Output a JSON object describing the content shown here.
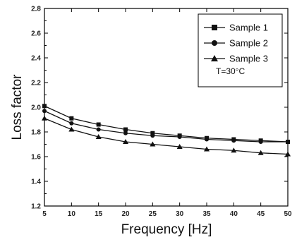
{
  "chart_data": {
    "type": "line",
    "xlabel": "Frequency [Hz]",
    "ylabel": "Loss factor",
    "xlim": [
      5,
      50
    ],
    "ylim": [
      1.2,
      2.8
    ],
    "x_ticks": [
      "5",
      "10",
      "15",
      "20",
      "25",
      "30",
      "35",
      "40",
      "45",
      "50"
    ],
    "y_ticks": [
      "1.2",
      "1.4",
      "1.6",
      "1.8",
      "2.0",
      "2.2",
      "2.4",
      "2.6",
      "2.8"
    ],
    "x": [
      5,
      10,
      15,
      20,
      25,
      30,
      35,
      40,
      45,
      50
    ],
    "series": [
      {
        "name": "Sample 1",
        "marker": "square",
        "values": [
          2.01,
          1.91,
          1.86,
          1.82,
          1.79,
          1.77,
          1.75,
          1.74,
          1.73,
          1.72
        ]
      },
      {
        "name": "Sample 2",
        "marker": "circle",
        "values": [
          1.97,
          1.87,
          1.82,
          1.79,
          1.77,
          1.76,
          1.74,
          1.73,
          1.72,
          1.72
        ]
      },
      {
        "name": "Sample 3",
        "marker": "triangle",
        "values": [
          1.91,
          1.82,
          1.76,
          1.72,
          1.7,
          1.68,
          1.66,
          1.65,
          1.63,
          1.62
        ]
      }
    ],
    "legend_position": "top-right",
    "annotation": "T=30°C",
    "grid": false
  }
}
